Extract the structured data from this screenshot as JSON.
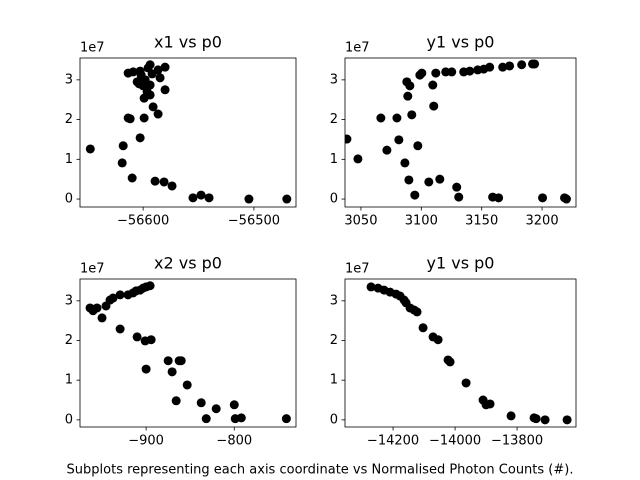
{
  "caption": "Subplots representing each axis coordinate vs Normalised Photon Counts (#).",
  "chart_data": [
    {
      "type": "scatter",
      "title": "x1 vs p0",
      "y_offset_label": "1e7",
      "color": "#000000",
      "xlim": [
        -56657,
        -56462
      ],
      "ylim": [
        -0.2,
        3.55
      ],
      "xticks": [
        {
          "value": -56600,
          "label": "−56600"
        },
        {
          "value": -56500,
          "label": "−56500"
        }
      ],
      "yticks": [
        0,
        1,
        2,
        3
      ],
      "x": [
        -56647.7,
        -56618.9,
        -56618.0,
        -56609.9,
        -56613.5,
        -56609.0,
        -56602.7,
        -56601.8,
        -56598.2,
        -56605.4,
        -56593.7,
        -56595.5,
        -56586.5,
        -56580.2,
        -56591.9,
        -56584.7,
        -56603.6,
        -56600.0,
        -56596.4,
        -56593.7,
        -56599.1,
        -56613.5,
        -56611.7,
        -56602.7,
        -56599.1,
        -56593.7,
        -56591.0,
        -56586.5,
        -56580.2,
        -56589.2,
        -56581.1,
        -56573.9,
        -56555.0,
        -56547.7,
        -56540.5,
        -56504.5,
        -56470.3
      ],
      "values": [
        1.26,
        0.91,
        1.34,
        0.53,
        3.17,
        3.2,
        3.22,
        3.12,
        3.0,
        2.95,
        3.38,
        3.3,
        3.25,
        3.32,
        3.15,
        3.05,
        2.9,
        2.85,
        2.7,
        2.87,
        2.54,
        2.04,
        2.02,
        1.54,
        2.04,
        2.62,
        2.32,
        2.14,
        2.75,
        0.45,
        0.43,
        0.33,
        0.03,
        0.1,
        0.03,
        0.0,
        0.0
      ]
    },
    {
      "type": "scatter",
      "title": "y1 vs p0",
      "y_offset_label": "1e7",
      "color": "#000000",
      "xlim": [
        3036.8,
        3228.1
      ],
      "ylim": [
        -0.2,
        3.55
      ],
      "xticks": [
        3050,
        3100,
        3150,
        3200
      ],
      "yticks": [
        0,
        1,
        2,
        3
      ],
      "x": [
        3038.4,
        3047.5,
        3066.5,
        3071.5,
        3079.8,
        3081.4,
        3086.4,
        3088.0,
        3088.8,
        3089.7,
        3090.5,
        3092.1,
        3094.6,
        3097.1,
        3098.8,
        3100.4,
        3106.2,
        3109.5,
        3110.3,
        3115.3,
        3112.0,
        3120.2,
        3125.2,
        3129.3,
        3131.0,
        3135.1,
        3140.1,
        3146.7,
        3151.7,
        3156.6,
        3159.1,
        3164.0,
        3167.4,
        3173.1,
        3183.1,
        3192.1,
        3193.8,
        3200.4,
        3218.6,
        3220.2
      ],
      "values": [
        1.51,
        1.01,
        2.04,
        1.23,
        2.04,
        1.49,
        0.91,
        2.95,
        2.59,
        0.48,
        2.85,
        2.12,
        0.1,
        1.34,
        3.12,
        3.17,
        0.43,
        2.87,
        2.34,
        0.5,
        3.17,
        3.2,
        3.2,
        0.3,
        0.05,
        3.2,
        3.22,
        3.25,
        3.27,
        3.32,
        0.05,
        0.03,
        3.32,
        3.35,
        3.38,
        3.4,
        3.4,
        0.03,
        0.03,
        0.0
      ]
    },
    {
      "type": "scatter",
      "title": "x2 vs p0",
      "y_offset_label": "1e7",
      "color": "#000000",
      "xlim": [
        -975,
        -730
      ],
      "ylim": [
        -0.18,
        3.55
      ],
      "xticks": [
        {
          "value": -900,
          "label": "−900"
        },
        {
          "value": -800,
          "label": "−800"
        }
      ],
      "yticks": [
        0,
        1,
        2,
        3
      ],
      "x": [
        -963.6,
        -960.2,
        -955.7,
        -950.0,
        -945.5,
        -940.9,
        -937.5,
        -929.5,
        -920.5,
        -914.8,
        -911.4,
        -906.8,
        -903.4,
        -900.0,
        -895.5,
        -929.5,
        -910.2,
        -901.1,
        -894.3,
        -900.0,
        -875.0,
        -870.5,
        -865.9,
        -862.5,
        -860.2,
        -853.4,
        -837.5,
        -831.8,
        -820.5,
        -800.0,
        -798.9,
        -792.0,
        -740.9
      ],
      "values": [
        2.82,
        2.75,
        2.82,
        2.57,
        2.87,
        3.02,
        3.07,
        3.15,
        3.15,
        3.2,
        3.25,
        3.27,
        3.32,
        3.35,
        3.38,
        2.29,
        2.09,
        1.99,
        2.02,
        1.28,
        1.49,
        1.21,
        0.48,
        1.49,
        1.49,
        0.88,
        0.43,
        0.03,
        0.28,
        0.38,
        0.03,
        0.05,
        0.03
      ]
    },
    {
      "type": "scatter",
      "title": "y1 vs p0",
      "y_offset_label": "1e7",
      "color": "#000000",
      "xlim": [
        -14355,
        -13610
      ],
      "ylim": [
        -0.18,
        3.55
      ],
      "xticks": [
        {
          "value": -14200,
          "label": "−14200"
        },
        {
          "value": -14000,
          "label": "−14000"
        },
        {
          "value": -13800,
          "label": "−13800"
        }
      ],
      "yticks": [
        0,
        1,
        2,
        3
      ],
      "x": [
        -14271.0,
        -14248.4,
        -14229.0,
        -14209.7,
        -14190.3,
        -14177.4,
        -14164.5,
        -14158.1,
        -14145.2,
        -14132.3,
        -14122.6,
        -14103.2,
        -14071.0,
        -14054.8,
        -14022.6,
        -14016.1,
        -13964.5,
        -13909.7,
        -13900.0,
        -13887.1,
        -13819.4,
        -13745.2,
        -13738.7,
        -13709.7,
        -13638.7
      ],
      "values": [
        3.35,
        3.32,
        3.27,
        3.22,
        3.17,
        3.12,
        3.02,
        2.95,
        2.82,
        2.77,
        2.72,
        2.32,
        2.09,
        2.02,
        1.51,
        1.46,
        0.93,
        0.5,
        0.38,
        0.4,
        0.1,
        0.05,
        0.03,
        0.0,
        0.0
      ]
    }
  ]
}
